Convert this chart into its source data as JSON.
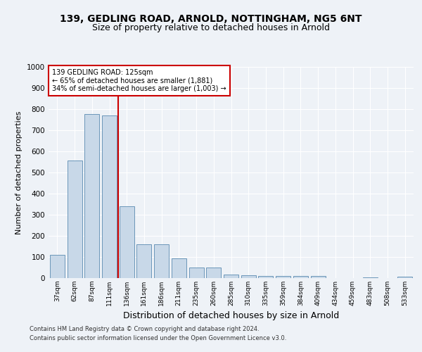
{
  "title1": "139, GEDLING ROAD, ARNOLD, NOTTINGHAM, NG5 6NT",
  "title2": "Size of property relative to detached houses in Arnold",
  "xlabel": "Distribution of detached houses by size in Arnold",
  "ylabel": "Number of detached properties",
  "categories": [
    "37sqm",
    "62sqm",
    "87sqm",
    "111sqm",
    "136sqm",
    "161sqm",
    "186sqm",
    "211sqm",
    "235sqm",
    "260sqm",
    "285sqm",
    "310sqm",
    "335sqm",
    "359sqm",
    "384sqm",
    "409sqm",
    "434sqm",
    "459sqm",
    "483sqm",
    "508sqm",
    "533sqm"
  ],
  "values": [
    110,
    558,
    778,
    770,
    340,
    160,
    160,
    95,
    50,
    50,
    18,
    12,
    10,
    10,
    10,
    10,
    0,
    0,
    5,
    0,
    8
  ],
  "bar_color": "#c8d8e8",
  "bar_edge_color": "#5a8ab0",
  "red_line_index": 3,
  "annotation_text": "139 GEDLING ROAD: 125sqm\n← 65% of detached houses are smaller (1,881)\n34% of semi-detached houses are larger (1,003) →",
  "annotation_box_color": "#ffffff",
  "annotation_box_edge_color": "#cc0000",
  "footer1": "Contains HM Land Registry data © Crown copyright and database right 2024.",
  "footer2": "Contains public sector information licensed under the Open Government Licence v3.0.",
  "ylim": [
    0,
    1000
  ],
  "yticks": [
    0,
    100,
    200,
    300,
    400,
    500,
    600,
    700,
    800,
    900,
    1000
  ],
  "bg_color": "#eef2f7",
  "plot_bg_color": "#eef2f7",
  "grid_color": "#ffffff",
  "title1_fontsize": 10,
  "title2_fontsize": 9,
  "xlabel_fontsize": 9,
  "ylabel_fontsize": 8
}
